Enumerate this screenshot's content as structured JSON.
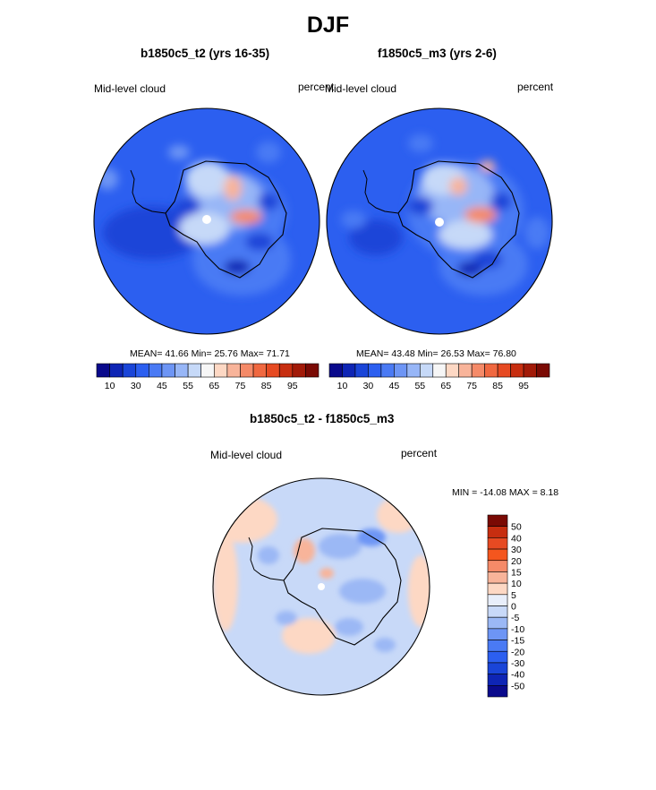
{
  "title": "DJF",
  "panels": [
    {
      "name": "b1850c5_t2",
      "title": "b1850c5_t2 (yrs 16-35)",
      "left_label": "Mid-level cloud",
      "right_label": "percent",
      "stats": "MEAN=  41.66  Min=  25.76  Max=  71.71"
    },
    {
      "name": "f1850c5_m3",
      "title": "f1850c5_m3 (yrs 2-6)",
      "left_label": "Mid-level cloud",
      "right_label": "percent",
      "stats": "MEAN=  43.48  Min=  26.53  Max=  76.80"
    },
    {
      "name": "difference",
      "title": "b1850c5_t2 - f1850c5_m3",
      "left_label": "Mid-level cloud",
      "right_label": "percent",
      "stats": "MIN = -14.08 MAX =   8.18"
    }
  ],
  "abs_colorbar": {
    "colors": [
      "#0a0a8c",
      "#0e25b5",
      "#1a45d8",
      "#2c5ff0",
      "#4a7af4",
      "#6d95f5",
      "#97b6f7",
      "#c6d9f8",
      "#f6f6f6",
      "#fdd8c4",
      "#f8b49a",
      "#f58a68",
      "#f06840",
      "#e64a22",
      "#c72e10",
      "#a21a08",
      "#7a0a04"
    ],
    "tick_labels": [
      "10",
      "30",
      "45",
      "55",
      "65",
      "75",
      "85",
      "95"
    ]
  },
  "diff_colorbar": {
    "colors": [
      "#7a0a04",
      "#c72e10",
      "#e64a22",
      "#f4561e",
      "#f58a68",
      "#f8b49a",
      "#fdd8c4",
      "#e8eefa",
      "#c8d9f8",
      "#9bb8f5",
      "#6d95f5",
      "#4a7af4",
      "#2c5ff0",
      "#1a45d8",
      "#0e25b5",
      "#0a0a8c"
    ],
    "tick_labels": [
      "50",
      "40",
      "30",
      "20",
      "15",
      "10",
      "5",
      "0",
      "-5",
      "-10",
      "-15",
      "-20",
      "-30",
      "-40",
      "-50"
    ]
  }
}
